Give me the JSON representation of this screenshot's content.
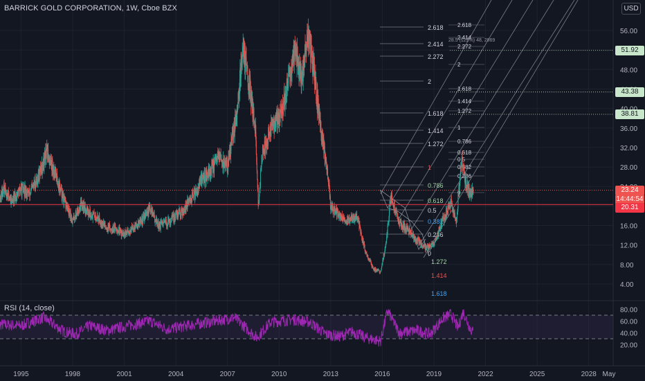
{
  "header": {
    "symbol_title": "BARRICK GOLD CORPORATION, 1W, Cboe BZX"
  },
  "currency_button": "USD",
  "rsi_label": "RSI (14, close)",
  "price_axis": {
    "ticks": [
      "56.00",
      "52.00",
      "48.00",
      "44.00",
      "40.00",
      "36.00",
      "32.00",
      "28.00",
      "24.00",
      "20.00",
      "16.00",
      "12.00",
      "8.00",
      "4.00"
    ]
  },
  "rsi_axis": {
    "ticks": [
      "80.00",
      "60.00",
      "40.00",
      "20.00"
    ]
  },
  "time_axis": {
    "ticks": [
      "1995",
      "1998",
      "2001",
      "2004",
      "2007",
      "2010",
      "2013",
      "2016",
      "2019",
      "2022",
      "2025",
      "2028",
      "May"
    ]
  },
  "price_chips": [
    {
      "label": "51.92",
      "bg": "#c8e6c9",
      "fg": "#131722"
    },
    {
      "label": "43.38",
      "bg": "#c8e6c9",
      "fg": "#131722"
    },
    {
      "label": "38.81",
      "bg": "#c8e6c9",
      "fg": "#131722"
    },
    {
      "label": "23.24",
      "bg": "#ef5350",
      "fg": "#ffffff"
    },
    {
      "label": "14:44:54",
      "bg": "#ef5350",
      "fg": "#ffffff"
    },
    {
      "label": "20.31",
      "bg": "#f23645",
      "fg": "#ffffff"
    }
  ],
  "fib_extension_top": {
    "levels": [
      "2.618",
      "2.414",
      "2.272",
      "2",
      "1.618",
      "1.414",
      "1.272",
      "1",
      "0.786",
      "0.618",
      "0.5",
      "0.382",
      "0.236",
      "0"
    ]
  },
  "fib_extension_bottom": {
    "levels": [
      "1.272",
      "1.414",
      "1.618"
    ],
    "colors": [
      "#a5d6a7",
      "#ef5350",
      "#42a5f5"
    ]
  },
  "fib_small": {
    "levels": [
      "2.618",
      "2.414",
      "2.272",
      "2",
      "1.618",
      "1.414",
      "1.272",
      "1",
      "0.786",
      "0.618",
      "0.5",
      "0.382",
      "0.236",
      "0"
    ]
  },
  "annotation_small": "28.5 (122%) 48, 2869",
  "chart_data": {
    "type": "candlestick",
    "symbol": "BARRICK GOLD CORPORATION",
    "interval": "1W",
    "exchange": "Cboe BZX",
    "x_range": [
      1993.5,
      2029.5
    ],
    "y_range": [
      0,
      60
    ],
    "key_levels": [
      51.92,
      43.38,
      38.81,
      23.24,
      20.31
    ],
    "last_price": 23.24,
    "horizontal_line": 20.31,
    "price_path": [
      [
        1993.5,
        20.0
      ],
      [
        1994.0,
        23.5
      ],
      [
        1994.5,
        21.0
      ],
      [
        1995.0,
        23.5
      ],
      [
        1995.5,
        22.5
      ],
      [
        1996.0,
        26.0
      ],
      [
        1996.5,
        31.0
      ],
      [
        1997.0,
        26.5
      ],
      [
        1997.5,
        21.0
      ],
      [
        1998.0,
        17.0
      ],
      [
        1998.5,
        20.5
      ],
      [
        1999.0,
        18.5
      ],
      [
        1999.5,
        17.5
      ],
      [
        2000.0,
        15.5
      ],
      [
        2000.5,
        15.5
      ],
      [
        2001.0,
        14.0
      ],
      [
        2001.5,
        15.5
      ],
      [
        2002.0,
        17.0
      ],
      [
        2002.5,
        19.5
      ],
      [
        2003.0,
        16.0
      ],
      [
        2003.5,
        16.5
      ],
      [
        2004.0,
        18.0
      ],
      [
        2004.5,
        19.5
      ],
      [
        2005.0,
        22.0
      ],
      [
        2005.5,
        25.5
      ],
      [
        2006.0,
        27.0
      ],
      [
        2006.5,
        30.0
      ],
      [
        2007.0,
        28.0
      ],
      [
        2007.5,
        38.0
      ],
      [
        2007.9,
        53.0
      ],
      [
        2008.3,
        44.0
      ],
      [
        2008.6,
        37.0
      ],
      [
        2008.8,
        20.0
      ],
      [
        2009.0,
        30.0
      ],
      [
        2009.5,
        36.0
      ],
      [
        2010.0,
        38.0
      ],
      [
        2010.5,
        44.0
      ],
      [
        2010.9,
        53.0
      ],
      [
        2011.3,
        46.0
      ],
      [
        2011.7,
        55.0
      ],
      [
        2012.0,
        48.0
      ],
      [
        2012.5,
        34.0
      ],
      [
        2012.8,
        28.0
      ],
      [
        2013.0,
        20.0
      ],
      [
        2013.5,
        18.0
      ],
      [
        2014.0,
        17.0
      ],
      [
        2014.5,
        18.0
      ],
      [
        2015.0,
        11.0
      ],
      [
        2015.5,
        7.0
      ],
      [
        2015.9,
        6.5
      ],
      [
        2016.2,
        12.0
      ],
      [
        2016.5,
        22.0
      ],
      [
        2017.0,
        16.5
      ],
      [
        2017.5,
        15.0
      ],
      [
        2018.0,
        13.0
      ],
      [
        2018.5,
        11.5
      ],
      [
        2019.0,
        12.0
      ],
      [
        2019.5,
        17.0
      ],
      [
        2020.0,
        20.5
      ],
      [
        2020.3,
        17.0
      ],
      [
        2020.6,
        29.5
      ],
      [
        2020.9,
        24.0
      ],
      [
        2021.1,
        22.5
      ],
      [
        2021.3,
        23.24
      ]
    ],
    "rsi": {
      "period": 14,
      "y_range": [
        10,
        90
      ],
      "bands": [
        70,
        30
      ],
      "path": [
        [
          1993.5,
          55
        ],
        [
          1995.0,
          52
        ],
        [
          1996.3,
          66
        ],
        [
          1997.5,
          42
        ],
        [
          1998.2,
          38
        ],
        [
          1999.0,
          52
        ],
        [
          2000.0,
          44
        ],
        [
          2001.2,
          52
        ],
        [
          2002.5,
          60
        ],
        [
          2003.5,
          46
        ],
        [
          2005.0,
          54
        ],
        [
          2006.3,
          60
        ],
        [
          2007.4,
          66
        ],
        [
          2008.7,
          32
        ],
        [
          2009.5,
          58
        ],
        [
          2010.8,
          63
        ],
        [
          2011.8,
          58
        ],
        [
          2012.7,
          38
        ],
        [
          2013.5,
          34
        ],
        [
          2014.3,
          42
        ],
        [
          2015.0,
          32
        ],
        [
          2015.9,
          26
        ],
        [
          2016.3,
          78
        ],
        [
          2017.0,
          40
        ],
        [
          2018.0,
          44
        ],
        [
          2018.8,
          38
        ],
        [
          2019.5,
          64
        ],
        [
          2020.0,
          72
        ],
        [
          2020.4,
          48
        ],
        [
          2020.7,
          76
        ],
        [
          2021.1,
          48
        ],
        [
          2021.3,
          40
        ]
      ]
    }
  }
}
